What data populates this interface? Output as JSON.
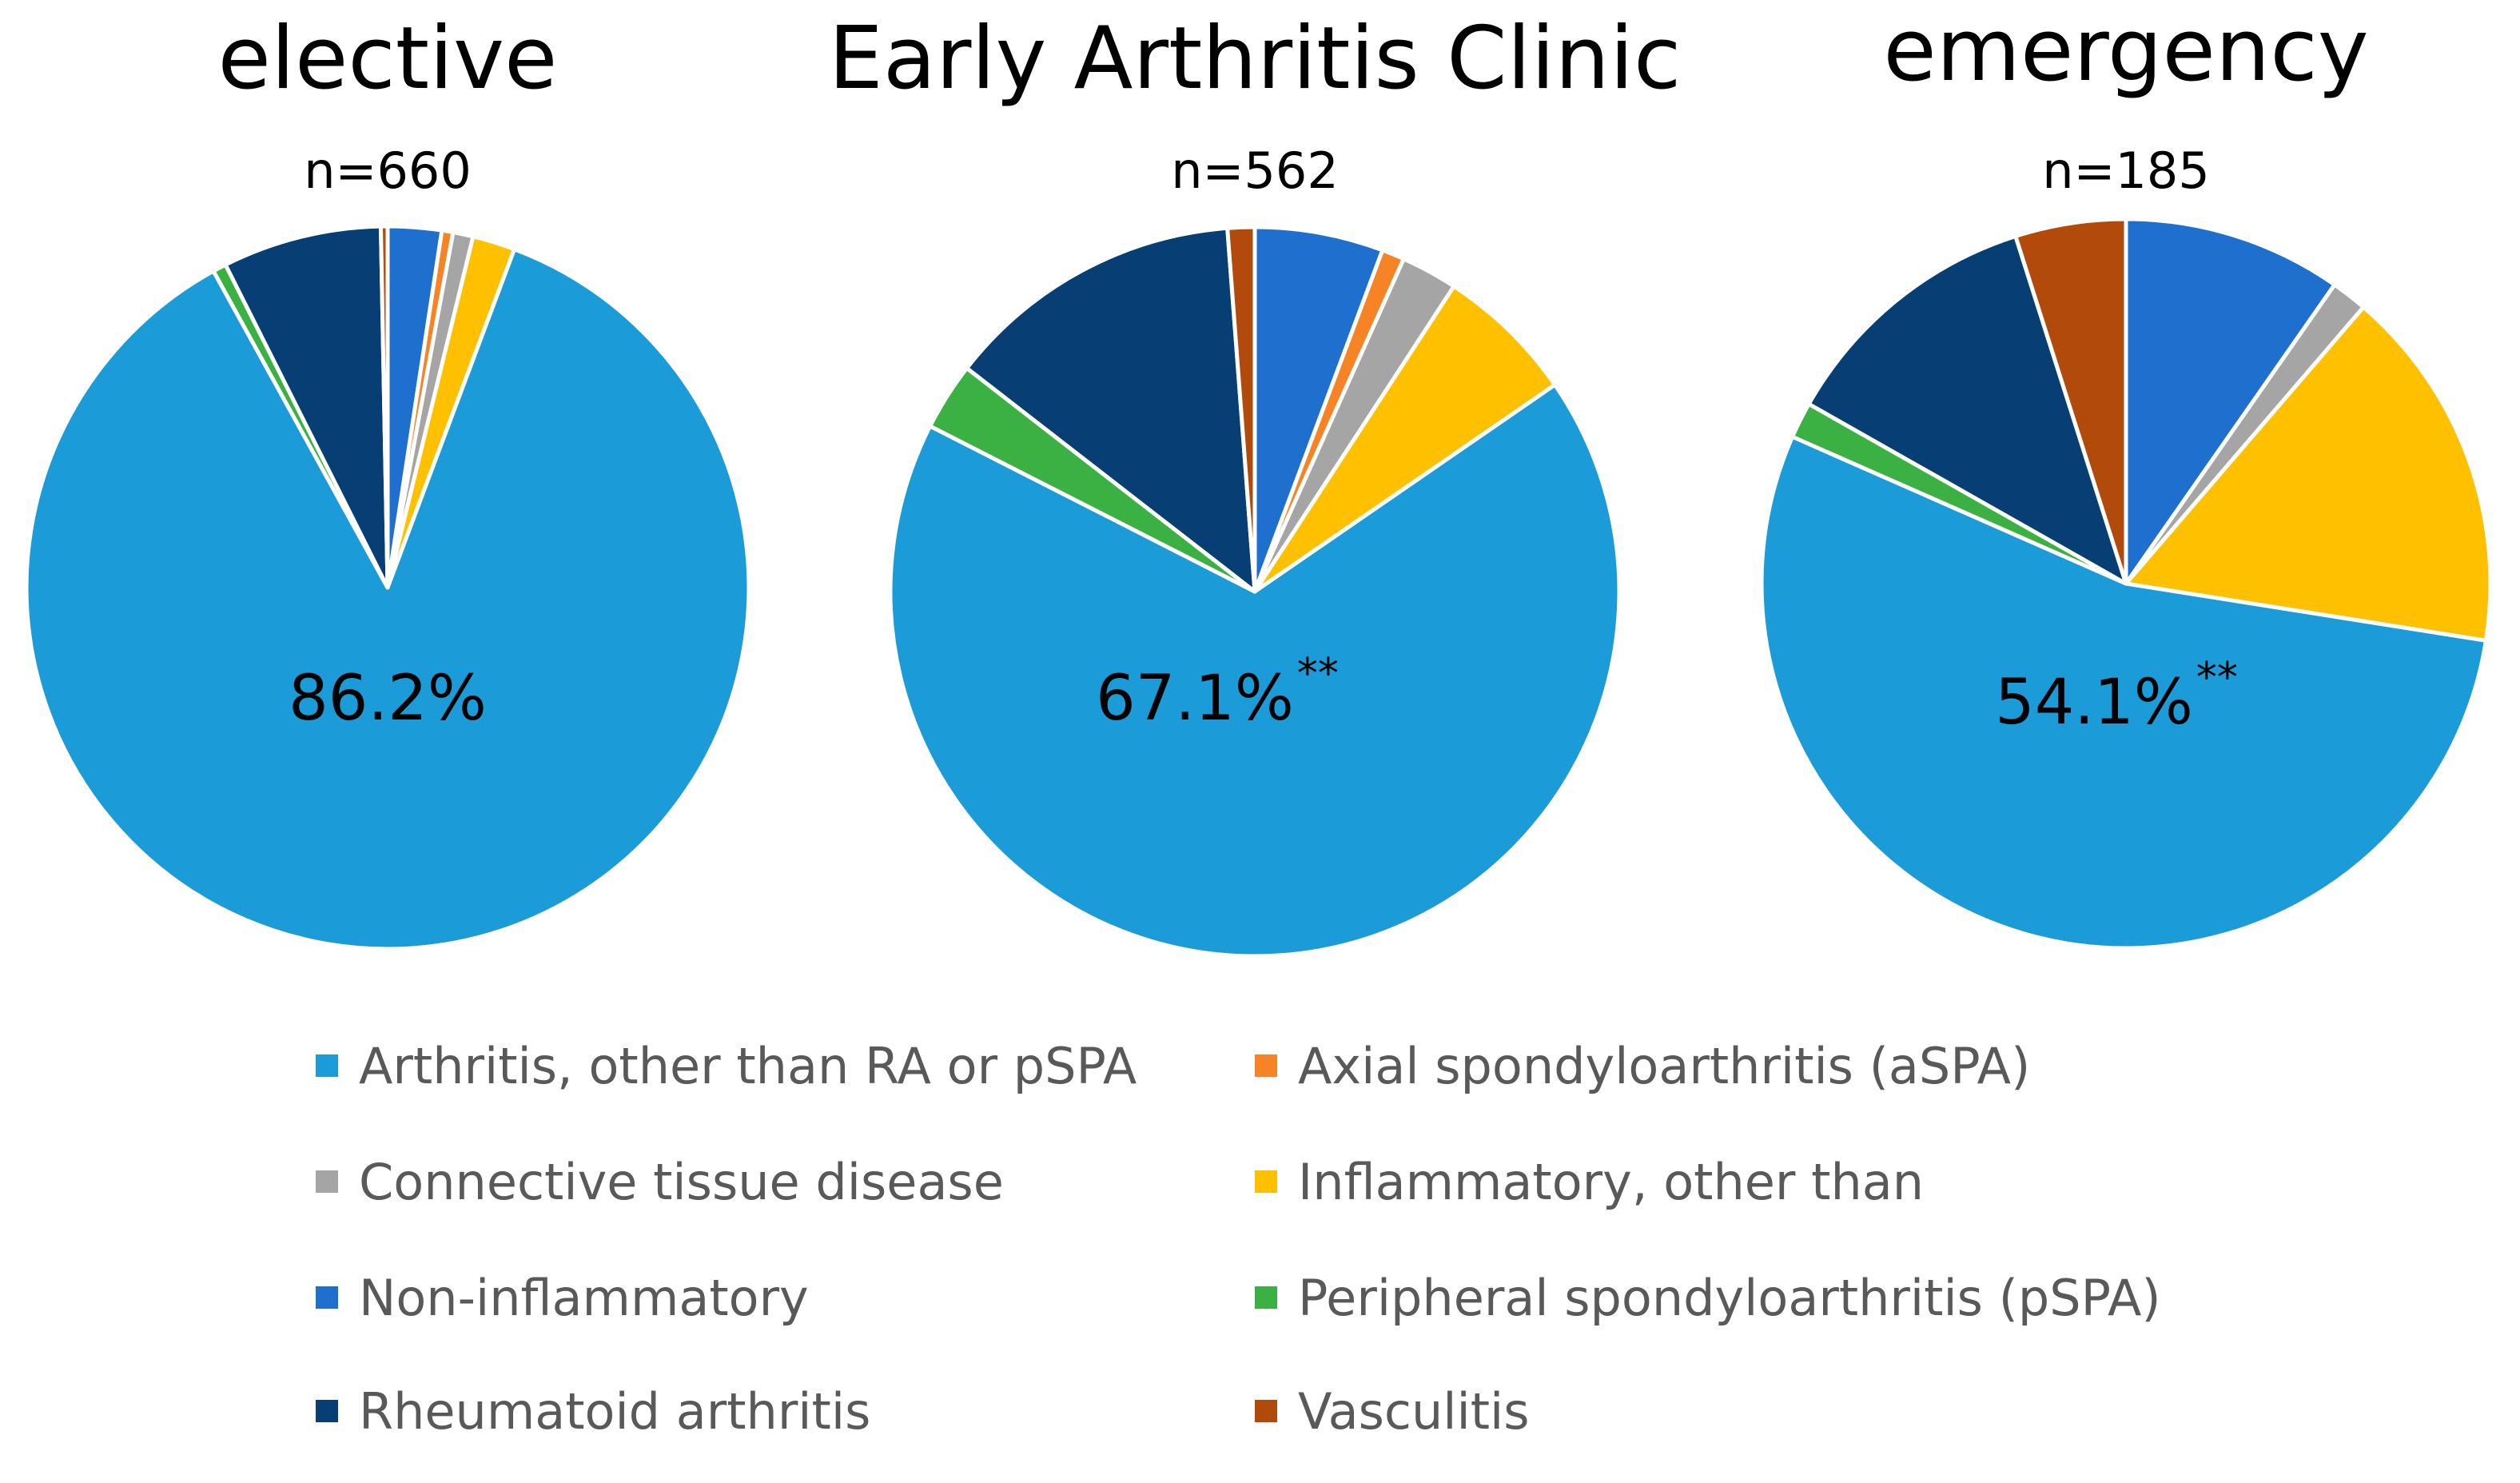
{
  "chart_data": {
    "type": "pie",
    "categories": [
      "Non-inflammatory",
      "Axial spondyloarthritis (aSPA)",
      "Connective tissue disease",
      "Inflammatory, other than",
      "Arthritis, other than RA or pSPA",
      "Peripheral spondyloarthritis (pSPA)",
      "Rheumatoid arthritis",
      "Vasculitis"
    ],
    "colors": {
      "Non-inflammatory": "#1f6fcf",
      "Axial spondyloarthritis (aSPA)": "#f68426",
      "Connective tissue disease": "#a5a5a5",
      "Inflammatory, other than": "#ffc000",
      "Arthritis, other than RA or pSPA": "#1b9bd7",
      "Peripheral spondyloarthritis (pSPA)": "#3bb143",
      "Rheumatoid arthritis": "#073f74",
      "Vasculitis": "#b14a0a"
    },
    "series": [
      {
        "name": "elective",
        "n_label": "n=660",
        "highlight_label": "86.2%",
        "significance": "",
        "values": [
          2.4,
          0.5,
          0.9,
          1.9,
          86.2,
          0.6,
          7.1,
          0.3
        ]
      },
      {
        "name": "Early Arthritis Clinic",
        "n_label": "n=562",
        "highlight_label": "67.1%",
        "significance": "**",
        "values": [
          5.7,
          1.0,
          2.5,
          6.2,
          67.1,
          3.0,
          13.3,
          1.2
        ]
      },
      {
        "name": "emergency",
        "n_label": "n=185",
        "highlight_label": "54.1%",
        "significance": "**",
        "values": [
          9.7,
          0.0,
          1.6,
          16.2,
          54.1,
          1.6,
          11.9,
          4.9
        ]
      }
    ],
    "legend": {
      "position": "bottom",
      "entries": [
        "Arthritis, other than RA or pSPA",
        "Axial spondyloarthritis (aSPA)",
        "Connective tissue disease",
        "Inflammatory, other than",
        "Non-inflammatory",
        "Peripheral spondyloarthritis (pSPA)",
        "Rheumatoid arthritis",
        "Vasculitis"
      ]
    }
  }
}
